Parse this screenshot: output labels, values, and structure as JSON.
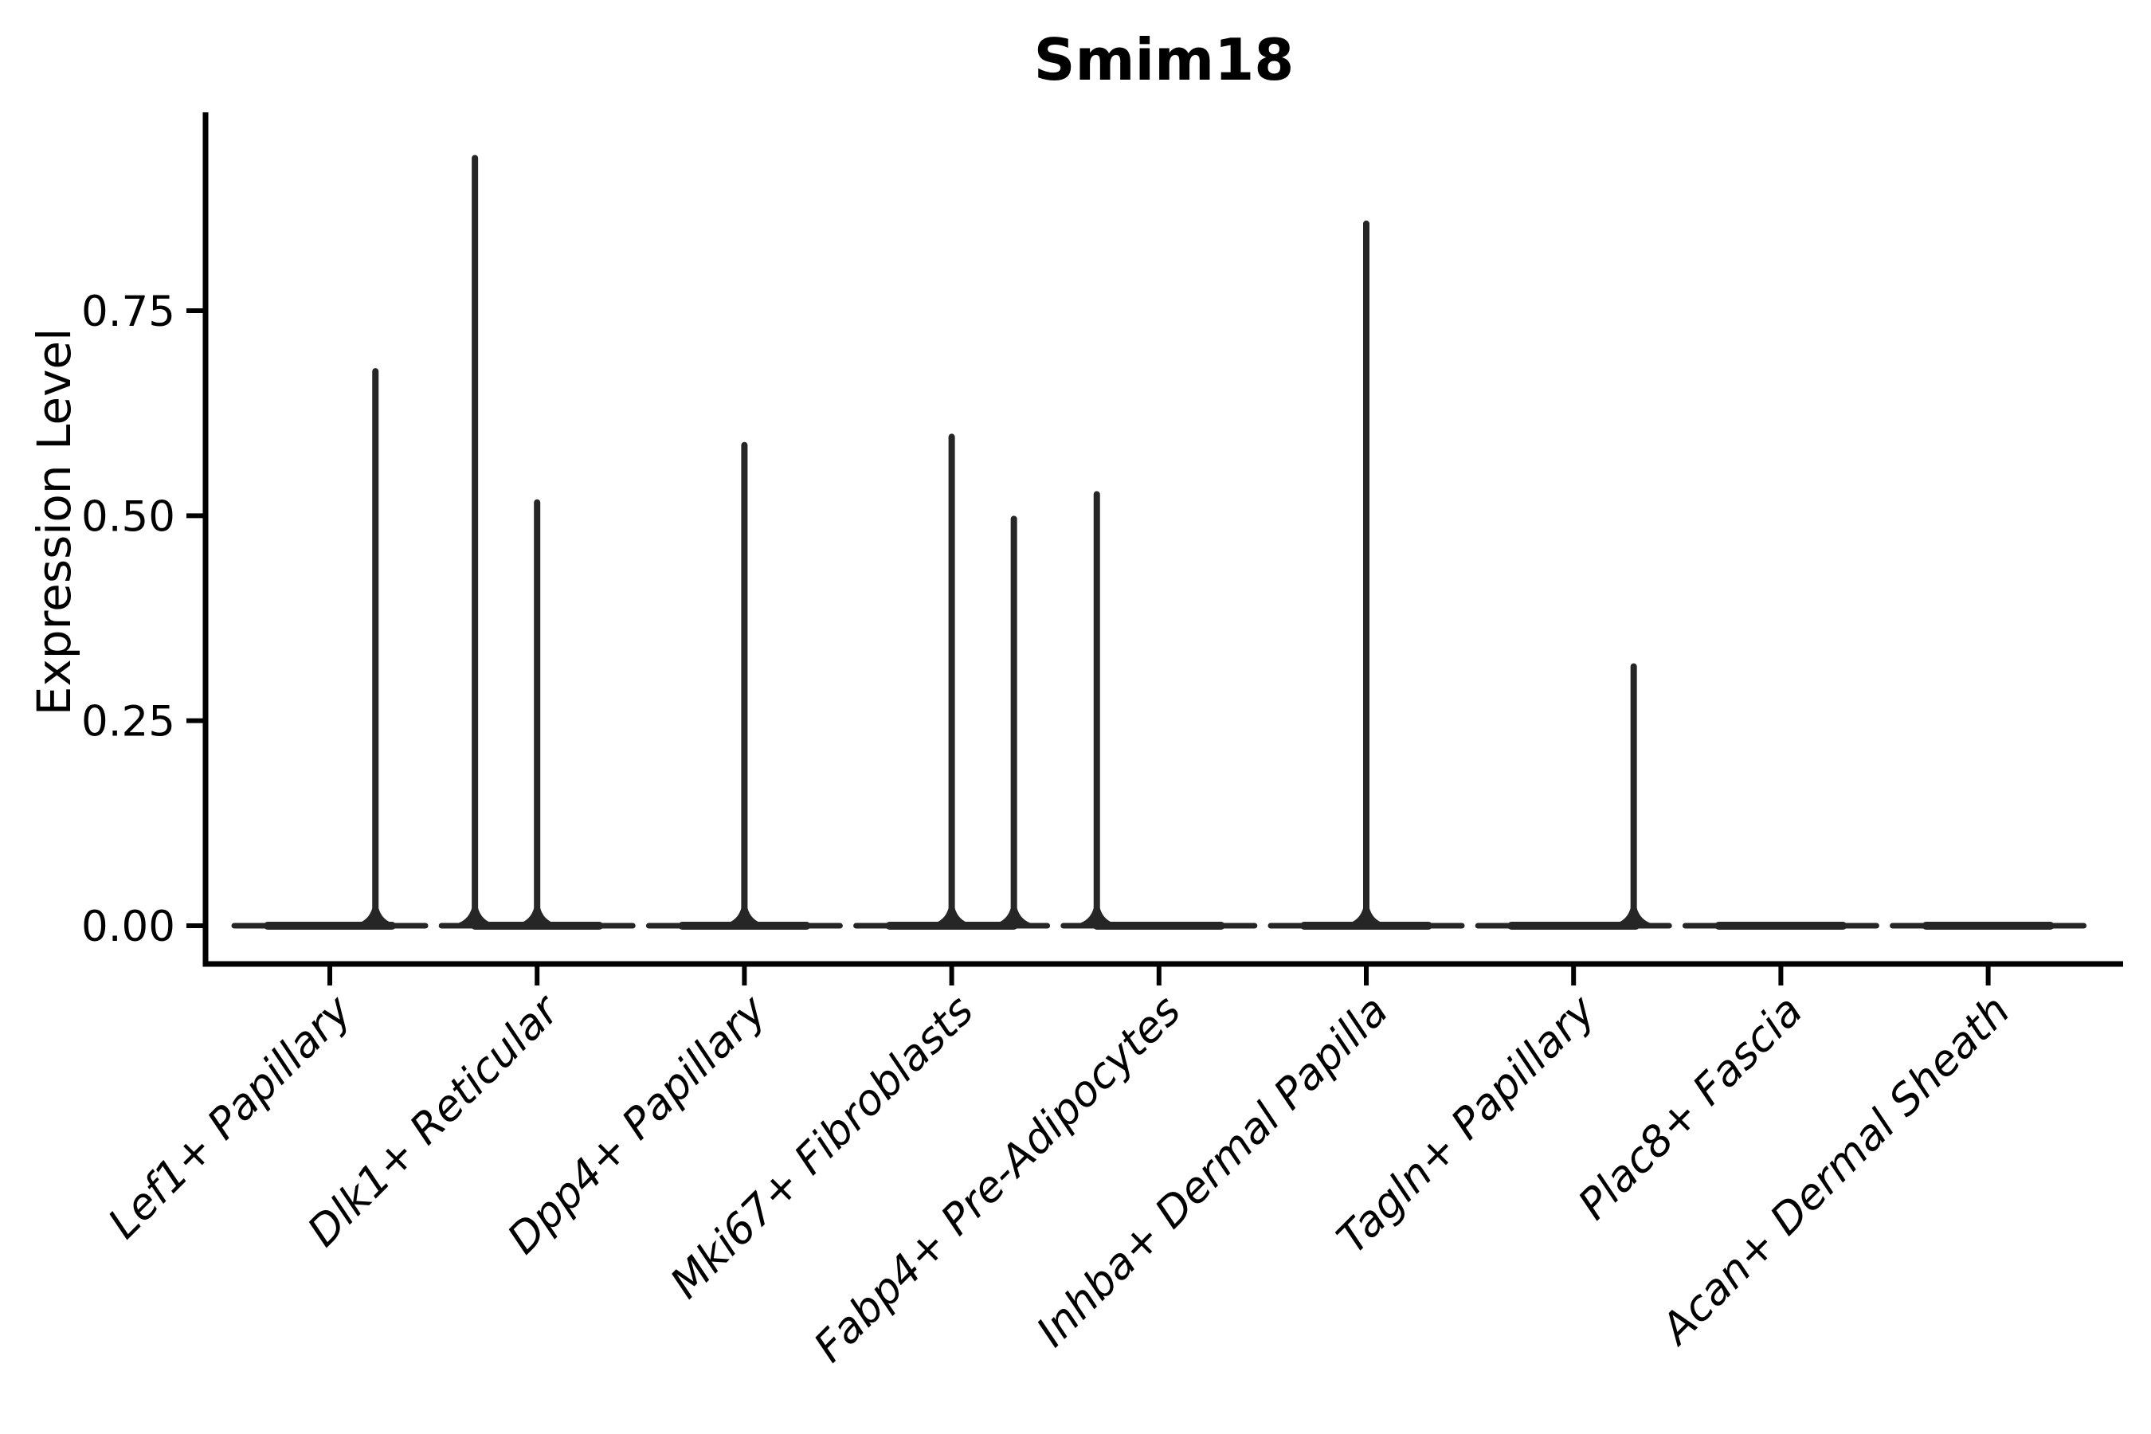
{
  "title": "Smim18",
  "axes": {
    "ylabel": "Expression Level",
    "ytick_labels": [
      "0.00",
      "0.25",
      "0.50",
      "0.75"
    ],
    "category_labels": [
      "Lef1+ Papillary",
      "Dlk1+ Reticular",
      "Dpp4+ Papillary",
      "Mki67+ Fibroblasts",
      "Fabp4+ Pre-Adipocytes",
      "Inhba+ Dermal Papilla",
      "Tagln+ Papillary",
      "Plac8+ Fascia",
      "Acan+ Dermal Sheath"
    ]
  },
  "colors": {
    "axis": "#000000",
    "violin": "#262626",
    "text": "#000000",
    "background": "#ffffff"
  },
  "chart_data": {
    "type": "violin",
    "title": "Smim18",
    "xlabel": "",
    "ylabel": "Expression Level",
    "yticks": [
      0.0,
      0.25,
      0.5,
      0.75
    ],
    "ylim": [
      -0.05,
      0.99
    ],
    "grid": false,
    "legend": false,
    "x_tick_rotation": 45,
    "categories": [
      "Lef1+ Papillary",
      "Dlk1+ Reticular",
      "Dpp4+ Papillary",
      "Mki67+ Fibroblasts",
      "Fabp4+ Pre-Adipocytes",
      "Inhba+ Dermal Papilla",
      "Tagln+ Papillary",
      "Plac8+ Fascia",
      "Acan+ Dermal Sheath"
    ],
    "series": [
      {
        "category": "Lef1+ Papillary",
        "baseline_value": 0,
        "spikes": [
          {
            "value": 0.68,
            "x_offset": 0.22
          }
        ]
      },
      {
        "category": "Dlk1+ Reticular",
        "baseline_value": 0,
        "spikes": [
          {
            "value": 0.94,
            "x_offset": -0.3
          },
          {
            "value": 0.52,
            "x_offset": 0.0
          }
        ]
      },
      {
        "category": "Dpp4+ Papillary",
        "baseline_value": 0,
        "spikes": [
          {
            "value": 0.59,
            "x_offset": 0.0
          }
        ]
      },
      {
        "category": "Mki67+ Fibroblasts",
        "baseline_value": 0,
        "spikes": [
          {
            "value": 0.6,
            "x_offset": 0.0
          },
          {
            "value": 0.5,
            "x_offset": 0.3
          }
        ]
      },
      {
        "category": "Fabp4+ Pre-Adipocytes",
        "baseline_value": 0,
        "spikes": [
          {
            "value": 0.53,
            "x_offset": -0.3
          }
        ]
      },
      {
        "category": "Inhba+ Dermal Papilla",
        "baseline_value": 0,
        "spikes": [
          {
            "value": 0.86,
            "x_offset": 0.0
          }
        ]
      },
      {
        "category": "Tagln+ Papillary",
        "baseline_value": 0,
        "spikes": [
          {
            "value": 0.32,
            "x_offset": 0.29
          }
        ]
      },
      {
        "category": "Plac8+ Fascia",
        "baseline_value": 0,
        "spikes": []
      },
      {
        "category": "Acan+ Dermal Sheath",
        "baseline_value": 0,
        "spikes": []
      }
    ]
  }
}
